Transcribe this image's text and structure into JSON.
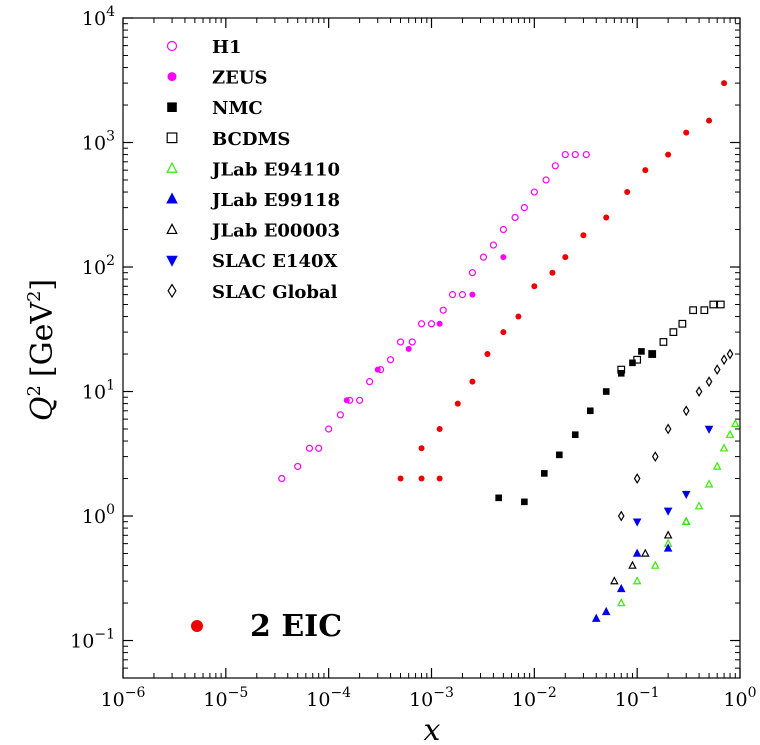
{
  "chart_data": {
    "type": "scatter",
    "x_scale": "log",
    "y_scale": "log",
    "xlim": [
      1e-06,
      1
    ],
    "ylim": [
      0.05,
      10000
    ],
    "xlabel": "x",
    "ylabel": "Q^2 [GeV^2]",
    "x_ticks": [
      {
        "value": 1e-06,
        "base": "10",
        "exp": "−6"
      },
      {
        "value": 1e-05,
        "base": "10",
        "exp": "−5"
      },
      {
        "value": 0.0001,
        "base": "10",
        "exp": "−4"
      },
      {
        "value": 0.001,
        "base": "10",
        "exp": "−3"
      },
      {
        "value": 0.01,
        "base": "10",
        "exp": "−2"
      },
      {
        "value": 0.1,
        "base": "10",
        "exp": "−1"
      },
      {
        "value": 1,
        "base": "10",
        "exp": "0"
      }
    ],
    "y_ticks": [
      {
        "value": 0.1,
        "base": "10",
        "exp": "−1"
      },
      {
        "value": 1,
        "base": "10",
        "exp": "0"
      },
      {
        "value": 10,
        "base": "10",
        "exp": "1"
      },
      {
        "value": 100,
        "base": "10",
        "exp": "2"
      },
      {
        "value": 1000,
        "base": "10",
        "exp": "3"
      },
      {
        "value": 10000,
        "base": "10",
        "exp": "4"
      }
    ],
    "legend_position": "top-left",
    "series": [
      {
        "name": "H1",
        "marker": "circle-open",
        "color": "#ff00ff",
        "points_description": "diagonal band",
        "points": [
          [
            3.5e-05,
            2
          ],
          [
            5e-05,
            2.5
          ],
          [
            6.5e-05,
            3.5
          ],
          [
            8e-05,
            3.5
          ],
          [
            0.0001,
            5
          ],
          [
            0.00013,
            6.5
          ],
          [
            0.00016,
            8.5
          ],
          [
            0.0002,
            8.5
          ],
          [
            0.00025,
            12
          ],
          [
            0.00032,
            15
          ],
          [
            0.0004,
            18
          ],
          [
            0.0005,
            25
          ],
          [
            0.00065,
            25
          ],
          [
            0.0008,
            35
          ],
          [
            0.001,
            35
          ],
          [
            0.0013,
            45
          ],
          [
            0.0016,
            60
          ],
          [
            0.002,
            60
          ],
          [
            0.0025,
            90
          ],
          [
            0.0032,
            120
          ],
          [
            0.004,
            150
          ],
          [
            0.005,
            200
          ],
          [
            0.0065,
            250
          ],
          [
            0.008,
            300
          ],
          [
            0.01,
            400
          ],
          [
            0.013,
            500
          ],
          [
            0.016,
            650
          ],
          [
            0.02,
            800
          ],
          [
            0.025,
            800
          ],
          [
            0.032,
            800
          ]
        ]
      },
      {
        "name": "ZEUS",
        "marker": "circle-filled",
        "color": "#ff00ff",
        "points": [
          [
            0.00015,
            8.5
          ],
          [
            0.0003,
            15
          ],
          [
            0.0006,
            22
          ],
          [
            0.0012,
            35
          ],
          [
            0.0025,
            60
          ],
          [
            0.005,
            120
          ]
        ]
      },
      {
        "name": "NMC",
        "marker": "square-filled",
        "color": "#000000",
        "points": [
          [
            0.0045,
            1.4
          ],
          [
            0.008,
            1.3
          ],
          [
            0.0125,
            2.2
          ],
          [
            0.0175,
            3.1
          ],
          [
            0.025,
            4.5
          ],
          [
            0.035,
            7
          ],
          [
            0.05,
            10
          ],
          [
            0.07,
            14
          ],
          [
            0.09,
            17
          ],
          [
            0.11,
            21
          ],
          [
            0.14,
            20
          ]
        ]
      },
      {
        "name": "BCDMS",
        "marker": "square-open",
        "color": "#000000",
        "points": [
          [
            0.07,
            15
          ],
          [
            0.1,
            18
          ],
          [
            0.14,
            20
          ],
          [
            0.18,
            25
          ],
          [
            0.225,
            30
          ],
          [
            0.275,
            35
          ],
          [
            0.35,
            45
          ],
          [
            0.45,
            45
          ],
          [
            0.55,
            50
          ],
          [
            0.65,
            50
          ]
        ]
      },
      {
        "name": "JLab E94110",
        "marker": "triangle-up-open",
        "color": "#33ee00",
        "points": [
          [
            0.07,
            0.2
          ],
          [
            0.1,
            0.3
          ],
          [
            0.15,
            0.4
          ],
          [
            0.2,
            0.6
          ],
          [
            0.3,
            0.9
          ],
          [
            0.4,
            1.2
          ],
          [
            0.5,
            1.8
          ],
          [
            0.6,
            2.5
          ],
          [
            0.7,
            3.5
          ],
          [
            0.8,
            4.5
          ],
          [
            0.9,
            5.5
          ]
        ]
      },
      {
        "name": "JLab E99118",
        "marker": "triangle-up-filled",
        "color": "#0000ee",
        "points": [
          [
            0.04,
            0.15
          ],
          [
            0.05,
            0.17
          ],
          [
            0.07,
            0.26
          ],
          [
            0.1,
            0.5
          ],
          [
            0.2,
            0.55
          ]
        ]
      },
      {
        "name": "JLab E00003",
        "marker": "triangle-up-open",
        "color": "#000000",
        "points": [
          [
            0.06,
            0.3
          ],
          [
            0.09,
            0.4
          ],
          [
            0.12,
            0.5
          ],
          [
            0.2,
            0.7
          ],
          [
            0.3,
            0.9
          ]
        ]
      },
      {
        "name": "SLAC E140X",
        "marker": "triangle-down-filled",
        "color": "#0000ee",
        "points": [
          [
            0.1,
            0.9
          ],
          [
            0.2,
            1.1
          ],
          [
            0.3,
            1.5
          ],
          [
            0.5,
            5
          ]
        ]
      },
      {
        "name": "SLAC Global",
        "marker": "diamond-open",
        "color": "#000000",
        "points": [
          [
            0.07,
            1
          ],
          [
            0.1,
            2
          ],
          [
            0.15,
            3
          ],
          [
            0.2,
            5
          ],
          [
            0.3,
            7
          ],
          [
            0.4,
            10
          ],
          [
            0.5,
            12
          ],
          [
            0.6,
            15
          ],
          [
            0.7,
            18
          ],
          [
            0.8,
            20
          ]
        ]
      },
      {
        "name": "2 EIC",
        "marker": "circle-filled",
        "color": "#ee0000",
        "points": [
          [
            0.0005,
            2
          ],
          [
            0.0008,
            2
          ],
          [
            0.0008,
            3.5
          ],
          [
            0.0012,
            2
          ],
          [
            0.0012,
            5
          ],
          [
            0.0018,
            8
          ],
          [
            0.0025,
            12
          ],
          [
            0.0035,
            20
          ],
          [
            0.005,
            30
          ],
          [
            0.007,
            40
          ],
          [
            0.01,
            70
          ],
          [
            0.015,
            90
          ],
          [
            0.02,
            120
          ],
          [
            0.03,
            180
          ],
          [
            0.05,
            250
          ],
          [
            0.08,
            400
          ],
          [
            0.12,
            600
          ],
          [
            0.2,
            800
          ],
          [
            0.3,
            1200
          ],
          [
            0.5,
            1500
          ],
          [
            0.7,
            3000
          ]
        ]
      }
    ]
  },
  "eic_label": "2 EIC",
  "legend": [
    {
      "label": "H1",
      "marker": "circle-open",
      "color": "#ff00ff"
    },
    {
      "label": "ZEUS",
      "marker": "circle-filled",
      "color": "#ff00ff"
    },
    {
      "label": "NMC",
      "marker": "square-filled",
      "color": "#000000"
    },
    {
      "label": "BCDMS",
      "marker": "square-open",
      "color": "#000000"
    },
    {
      "label": "JLab E94110",
      "marker": "triangle-up-open",
      "color": "#33ee00"
    },
    {
      "label": "JLab E99118",
      "marker": "triangle-up-filled",
      "color": "#0000ee"
    },
    {
      "label": "JLab E00003",
      "marker": "triangle-up-open",
      "color": "#000000"
    },
    {
      "label": "SLAC E140X",
      "marker": "triangle-down-filled",
      "color": "#0000ee"
    },
    {
      "label": "SLAC Global",
      "marker": "diamond-open",
      "color": "#000000"
    }
  ],
  "axis_labels": {
    "x": "x",
    "y_q": "Q",
    "y_exp": "2",
    "y_unit_open": "[GeV",
    "y_unit_exp": "2",
    "y_unit_close": "]"
  }
}
